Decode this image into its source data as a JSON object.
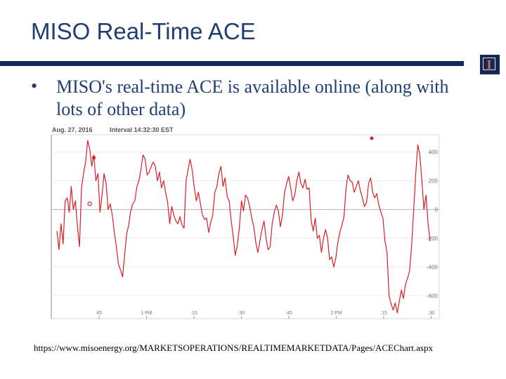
{
  "slide": {
    "title": "MISO Real-Time ACE",
    "bullet_symbol": "•",
    "bullet_text": "MISO's real-time ACE is available online (along with lots of other data)",
    "url": "https://www.misoenergy.org/MARKETSOPERATIONS/REALTIMEMARKETDATA/Pages/ACEChart.aspx",
    "logo_letter": "I"
  },
  "colors": {
    "title": "#1f3f73",
    "rule": "#13285a",
    "series": "#d81f26",
    "logo_accent": "#e8692b"
  },
  "chart_data": {
    "type": "line",
    "title": "Aug. 27, 2016",
    "subtitle": "Interval 14:32:30 EST",
    "legend": "",
    "x_ticks": [
      "45",
      "1 PM",
      ":15",
      ":30",
      ":45",
      "2 PM",
      ":15",
      ":30"
    ],
    "y_ticks": [
      400,
      200,
      0,
      -200,
      -400,
      -600
    ],
    "ylim": [
      -760,
      520
    ],
    "grid": "horizontal",
    "series": [
      {
        "values": [
          -150,
          -280,
          -100,
          -240,
          60,
          80,
          -20,
          160,
          0,
          60,
          -120,
          -260,
          150,
          250,
          330,
          480,
          420,
          300,
          380,
          200,
          250,
          -20,
          100,
          250,
          180,
          0,
          40,
          -40,
          -160,
          -260,
          -380,
          -420,
          -470,
          -320,
          -170,
          -110,
          -10,
          40,
          60,
          160,
          200,
          280,
          380,
          350,
          240,
          260,
          300,
          330,
          300,
          200,
          260,
          150,
          200,
          120,
          50,
          -100,
          20,
          -40,
          -80,
          -100,
          -50,
          -110,
          -130,
          200,
          280,
          350,
          270,
          150,
          60,
          120,
          40,
          -40,
          -70,
          -60,
          -160,
          -90,
          -40,
          120,
          160,
          250,
          300,
          160,
          220,
          90,
          60,
          -80,
          -190,
          -320,
          -250,
          -120,
          60,
          -10,
          100,
          80,
          20,
          -60,
          -120,
          -230,
          -300,
          -220,
          -140,
          -80,
          -200,
          -280,
          -260,
          -100,
          -20,
          30,
          -10,
          -120,
          -40,
          120,
          180,
          230,
          150,
          60,
          100,
          200,
          260,
          180,
          150,
          210,
          140,
          150,
          -80,
          -150,
          -60,
          -200,
          -180,
          -300,
          -200,
          -140,
          -200,
          -350,
          -330,
          -400,
          -340,
          -230,
          -160,
          -110,
          -50,
          150,
          240,
          200,
          190,
          120,
          160,
          200,
          130,
          80,
          20,
          50,
          180,
          220,
          120,
          80,
          110,
          30,
          -20,
          -60,
          -220,
          -300,
          -600,
          -660,
          -700,
          -650,
          -720,
          -640,
          -560,
          -620,
          -520,
          -480,
          -430,
          -250,
          0,
          250,
          450,
          380,
          200,
          0,
          100,
          -100,
          -220
        ]
      }
    ],
    "markers": [
      {
        "label": "",
        "index": 18,
        "value": 360
      },
      {
        "label": "",
        "index": 16,
        "value": 40
      }
    ]
  }
}
